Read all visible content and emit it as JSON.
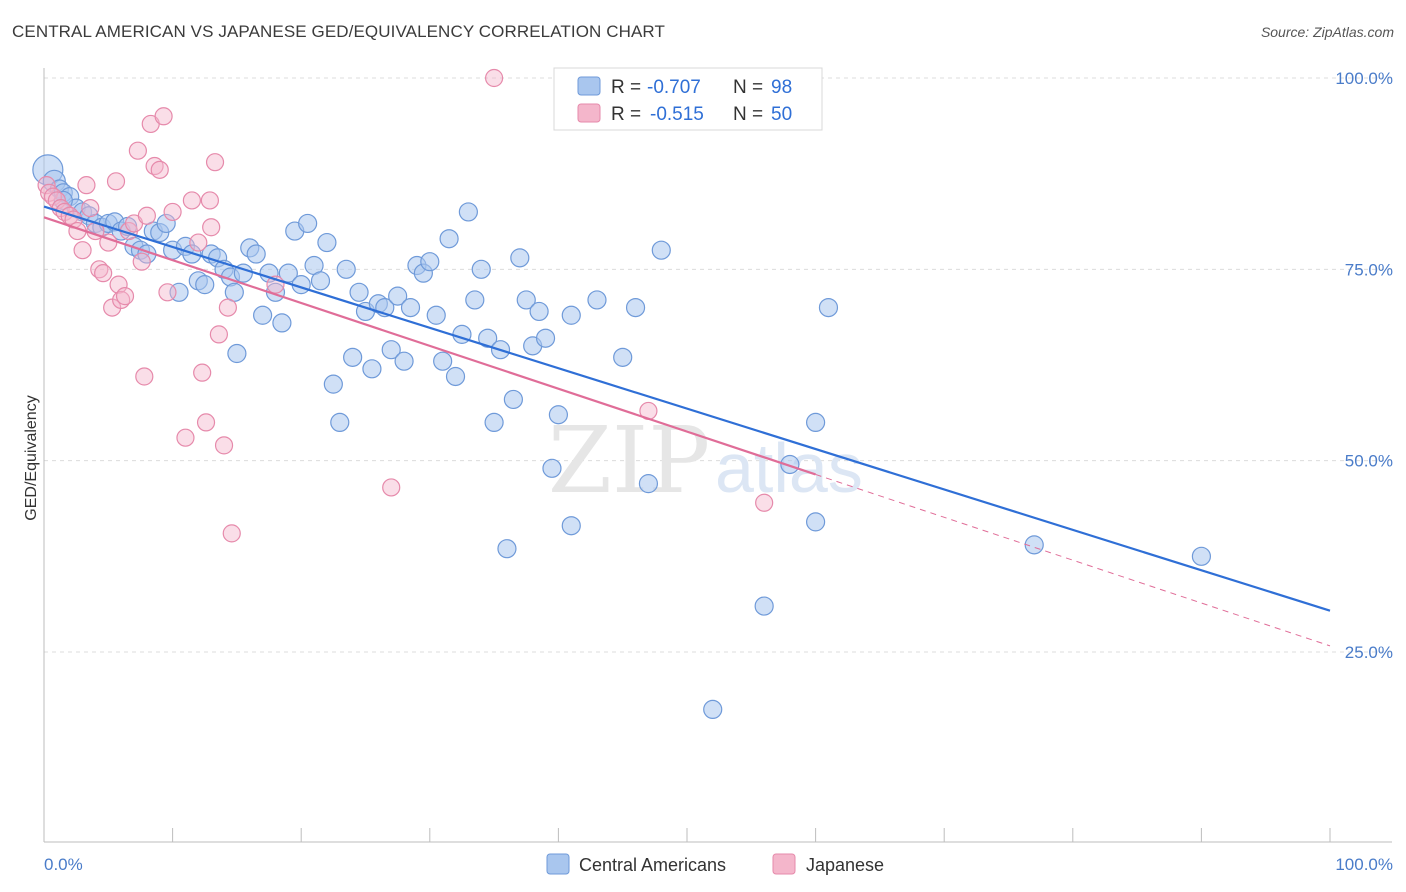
{
  "header": {
    "title": "CENTRAL AMERICAN VS JAPANESE GED/EQUIVALENCY CORRELATION CHART",
    "source": "Source: ZipAtlas.com"
  },
  "watermark": {
    "zip": "ZIP",
    "atlas": "atlas"
  },
  "legend": {
    "r_label": "R =",
    "n_label": "N =",
    "rows": [
      {
        "r": "-0.707",
        "n": "98"
      },
      {
        "r": "-0.515",
        "n": "50"
      }
    ]
  },
  "bottom_legend": [
    "Central Americans",
    "Japanese"
  ],
  "colors": {
    "blue_fill": "#a9c6ee",
    "blue_stroke": "#6f9ad9",
    "blue_line": "#2f6fd6",
    "pink_fill": "#f4b6cb",
    "pink_stroke": "#e68aab",
    "pink_line": "#e06d98"
  },
  "chart_data": {
    "type": "scatter",
    "title": "CENTRAL AMERICAN VS JAPANESE GED/EQUIVALENCY CORRELATION CHART",
    "xlabel": "",
    "ylabel": "GED/Equivalency",
    "xlim": [
      0,
      100
    ],
    "ylim": [
      0,
      105
    ],
    "x_tick_labels": [
      "0.0%",
      "100.0%"
    ],
    "y_ticks": [
      25,
      50,
      75,
      100
    ],
    "y_tick_labels": [
      "25.0%",
      "50.0%",
      "75.0%",
      "100.0%"
    ],
    "grid": true,
    "legend_position": "top-center",
    "series": [
      {
        "name": "Central Americans",
        "r": -0.707,
        "n": 98,
        "trend": {
          "x": [
            0,
            100
          ],
          "y": [
            83.2,
            30.4
          ]
        },
        "points": [
          [
            0.3,
            88
          ],
          [
            0.8,
            86.5
          ],
          [
            1.2,
            85.5
          ],
          [
            1.5,
            85
          ],
          [
            2,
            84.5
          ],
          [
            2.5,
            83
          ],
          [
            3,
            82.5
          ],
          [
            3.5,
            82
          ],
          [
            4,
            81
          ],
          [
            4.5,
            80.5
          ],
          [
            5,
            81
          ],
          [
            5.5,
            81.2
          ],
          [
            6,
            80
          ],
          [
            6.5,
            80.6
          ],
          [
            7,
            78
          ],
          [
            7.5,
            77.5
          ],
          [
            8,
            77
          ],
          [
            8.5,
            80
          ],
          [
            9,
            79.8
          ],
          [
            9.5,
            81
          ],
          [
            10,
            77.5
          ],
          [
            10.5,
            72
          ],
          [
            11,
            78
          ],
          [
            11.5,
            77
          ],
          [
            12,
            73.5
          ],
          [
            12.5,
            73
          ],
          [
            13,
            77
          ],
          [
            13.5,
            76.5
          ],
          [
            14,
            75
          ],
          [
            14.5,
            74
          ],
          [
            14.8,
            72
          ],
          [
            15,
            64
          ],
          [
            15.5,
            74.5
          ],
          [
            16,
            77.8
          ],
          [
            16.5,
            77
          ],
          [
            17,
            69
          ],
          [
            17.5,
            74.5
          ],
          [
            18,
            72
          ],
          [
            18.5,
            68
          ],
          [
            19,
            74.5
          ],
          [
            19.5,
            80
          ],
          [
            20,
            73
          ],
          [
            20.5,
            81
          ],
          [
            21,
            75.5
          ],
          [
            21.5,
            73.5
          ],
          [
            22,
            78.5
          ],
          [
            22.5,
            60
          ],
          [
            23,
            55
          ],
          [
            23.5,
            75
          ],
          [
            24,
            63.5
          ],
          [
            24.5,
            72
          ],
          [
            25,
            69.5
          ],
          [
            25.5,
            62
          ],
          [
            26,
            70.5
          ],
          [
            26.5,
            70
          ],
          [
            27,
            64.5
          ],
          [
            27.5,
            71.5
          ],
          [
            28,
            63
          ],
          [
            28.5,
            70
          ],
          [
            29,
            75.5
          ],
          [
            29.5,
            74.5
          ],
          [
            30,
            76
          ],
          [
            30.5,
            69
          ],
          [
            31,
            63
          ],
          [
            31.5,
            79
          ],
          [
            32,
            61
          ],
          [
            32.5,
            66.5
          ],
          [
            33,
            82.5
          ],
          [
            33.5,
            71
          ],
          [
            34,
            75
          ],
          [
            34.5,
            66
          ],
          [
            35,
            55
          ],
          [
            35.5,
            64.5
          ],
          [
            36,
            38.5
          ],
          [
            36.5,
            58
          ],
          [
            37,
            76.5
          ],
          [
            37.5,
            71
          ],
          [
            38,
            65
          ],
          [
            38.5,
            69.5
          ],
          [
            39,
            66
          ],
          [
            39.5,
            49
          ],
          [
            40,
            56
          ],
          [
            41,
            41.5
          ],
          [
            41,
            69
          ],
          [
            43,
            71
          ],
          [
            45,
            63.5
          ],
          [
            46,
            70
          ],
          [
            47,
            47
          ],
          [
            48,
            77.5
          ],
          [
            52,
            17.5
          ],
          [
            56,
            31
          ],
          [
            58,
            49.5
          ],
          [
            60,
            42
          ],
          [
            60,
            55
          ],
          [
            61,
            70
          ],
          [
            77,
            39
          ],
          [
            90,
            37.5
          ],
          [
            1.5,
            84
          ]
        ]
      },
      {
        "name": "Japanese",
        "r": -0.515,
        "n": 50,
        "trend": {
          "x": [
            0,
            60
          ],
          "y": [
            81.8,
            48.2
          ]
        },
        "trend_ext": {
          "x": [
            60,
            100
          ],
          "y": [
            48.2,
            25.8
          ]
        },
        "points": [
          [
            0.2,
            86
          ],
          [
            0.4,
            85
          ],
          [
            0.7,
            84.5
          ],
          [
            1,
            84
          ],
          [
            1.3,
            83
          ],
          [
            1.6,
            82.5
          ],
          [
            2,
            82
          ],
          [
            2.3,
            81.5
          ],
          [
            2.6,
            80
          ],
          [
            3,
            77.5
          ],
          [
            3.3,
            86
          ],
          [
            3.6,
            83
          ],
          [
            4,
            80
          ],
          [
            4.3,
            75
          ],
          [
            4.6,
            74.5
          ],
          [
            5,
            78.5
          ],
          [
            5.3,
            70
          ],
          [
            5.6,
            86.5
          ],
          [
            5.8,
            73
          ],
          [
            6,
            71
          ],
          [
            6.3,
            71.5
          ],
          [
            6.6,
            80
          ],
          [
            7,
            81
          ],
          [
            7.3,
            90.5
          ],
          [
            7.6,
            76
          ],
          [
            7.8,
            61
          ],
          [
            8,
            82
          ],
          [
            8.3,
            94
          ],
          [
            8.6,
            88.5
          ],
          [
            9,
            88
          ],
          [
            9.3,
            95
          ],
          [
            9.6,
            72
          ],
          [
            10,
            82.5
          ],
          [
            11,
            53
          ],
          [
            11.5,
            84
          ],
          [
            12,
            78.5
          ],
          [
            12.3,
            61.5
          ],
          [
            12.6,
            55
          ],
          [
            12.9,
            84
          ],
          [
            13,
            80.5
          ],
          [
            13.3,
            89
          ],
          [
            13.6,
            66.5
          ],
          [
            14,
            52
          ],
          [
            14.3,
            70
          ],
          [
            14.6,
            40.5
          ],
          [
            18,
            73
          ],
          [
            27,
            46.5
          ],
          [
            35,
            100
          ],
          [
            47,
            56.5
          ],
          [
            56,
            44.5
          ]
        ]
      }
    ]
  }
}
